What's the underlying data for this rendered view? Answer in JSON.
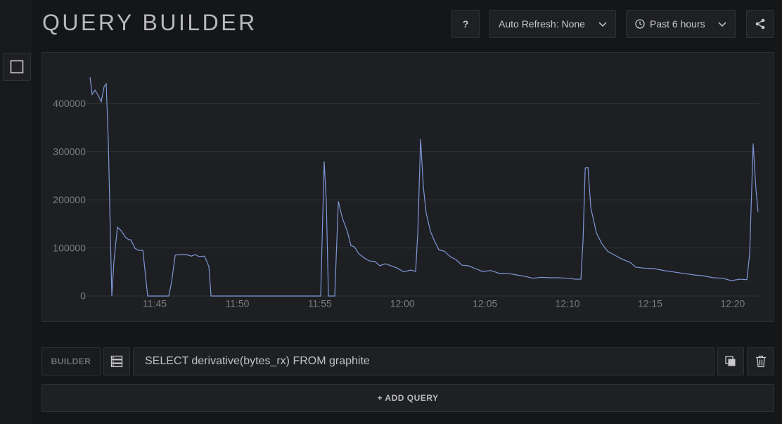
{
  "header": {
    "title": "QUERY BUILDER",
    "help": "?",
    "auto_refresh": "Auto Refresh: None",
    "time_range": "Past 6 hours"
  },
  "chart_data": {
    "type": "line",
    "x": [
      701.08,
      701.21,
      701.38,
      701.59,
      701.76,
      701.93,
      702.06,
      702.19,
      702.32,
      702.4,
      702.53,
      702.74,
      702.96,
      703.21,
      703.42,
      703.55,
      703.81,
      704.02,
      704.28,
      704.57,
      705.85,
      706.02,
      706.24,
      706.49,
      706.92,
      707.21,
      707.47,
      707.68,
      708.02,
      708.28,
      708.41,
      715.05,
      715.26,
      715.39,
      715.52,
      715.9,
      716.12,
      716.37,
      716.67,
      716.88,
      717.1,
      717.35,
      717.69,
      717.99,
      718.33,
      718.63,
      718.97,
      719.31,
      719.69,
      720.08,
      720.5,
      720.8,
      720.93,
      721.1,
      721.27,
      721.44,
      721.7,
      721.95,
      722.21,
      722.55,
      722.89,
      723.23,
      723.61,
      723.99,
      724.42,
      724.85,
      725.36,
      725.87,
      726.38,
      726.89,
      727.4,
      727.91,
      728.42,
      728.94,
      729.45,
      729.96,
      730.47,
      730.81,
      730.94,
      731.07,
      731.24,
      731.41,
      731.75,
      732.09,
      732.43,
      732.85,
      733.28,
      733.79,
      734.13,
      734.64,
      735.24,
      735.84,
      736.43,
      737.03,
      737.62,
      738.22,
      738.82,
      739.41,
      739.92,
      740.43,
      740.86,
      741.03,
      741.24,
      741.41,
      741.54
    ],
    "series": [
      {
        "color": "#7f97d9",
        "values": [
          455000,
          419000,
          428000,
          416000,
          404000,
          435000,
          441000,
          320000,
          117000,
          0,
          73000,
          143000,
          136000,
          123000,
          117000,
          117000,
          99000,
          95000,
          95000,
          0,
          0,
          29000,
          85000,
          86000,
          86000,
          83000,
          86000,
          82000,
          83000,
          61000,
          0,
          0,
          280000,
          197000,
          0,
          0,
          197000,
          161000,
          134000,
          105000,
          102000,
          88000,
          79000,
          73000,
          72000,
          63000,
          67000,
          63000,
          58000,
          50000,
          54000,
          51000,
          131000,
          326000,
          226000,
          172000,
          134000,
          114000,
          96000,
          93000,
          82000,
          76000,
          64000,
          63000,
          57000,
          51000,
          53000,
          47000,
          47000,
          44000,
          41000,
          37000,
          39000,
          38000,
          38000,
          37000,
          35000,
          35000,
          117000,
          266000,
          267000,
          183000,
          131000,
          108000,
          93000,
          85000,
          77000,
          70000,
          60000,
          58000,
          57000,
          53000,
          50000,
          47000,
          44000,
          42000,
          38000,
          37000,
          32000,
          35000,
          34000,
          88000,
          317000,
          222000,
          175000
        ]
      }
    ],
    "xlim": [
      701.08,
      741.54
    ],
    "xticks": [
      {
        "value": 705,
        "label": "11:45"
      },
      {
        "value": 710,
        "label": "11:50"
      },
      {
        "value": 715,
        "label": "11:55"
      },
      {
        "value": 720,
        "label": "12:00"
      },
      {
        "value": 725,
        "label": "12:05"
      },
      {
        "value": 730,
        "label": "12:10"
      },
      {
        "value": 735,
        "label": "12:15"
      },
      {
        "value": 740,
        "label": "12:20"
      }
    ],
    "ylim": [
      0,
      475000
    ],
    "yticks": [
      0,
      100000,
      200000,
      300000,
      400000
    ],
    "grid": true
  },
  "query": {
    "builder": "BUILDER",
    "text": "SELECT derivative(bytes_rx) FROM graphite"
  },
  "add_query": "+ ADD QUERY"
}
